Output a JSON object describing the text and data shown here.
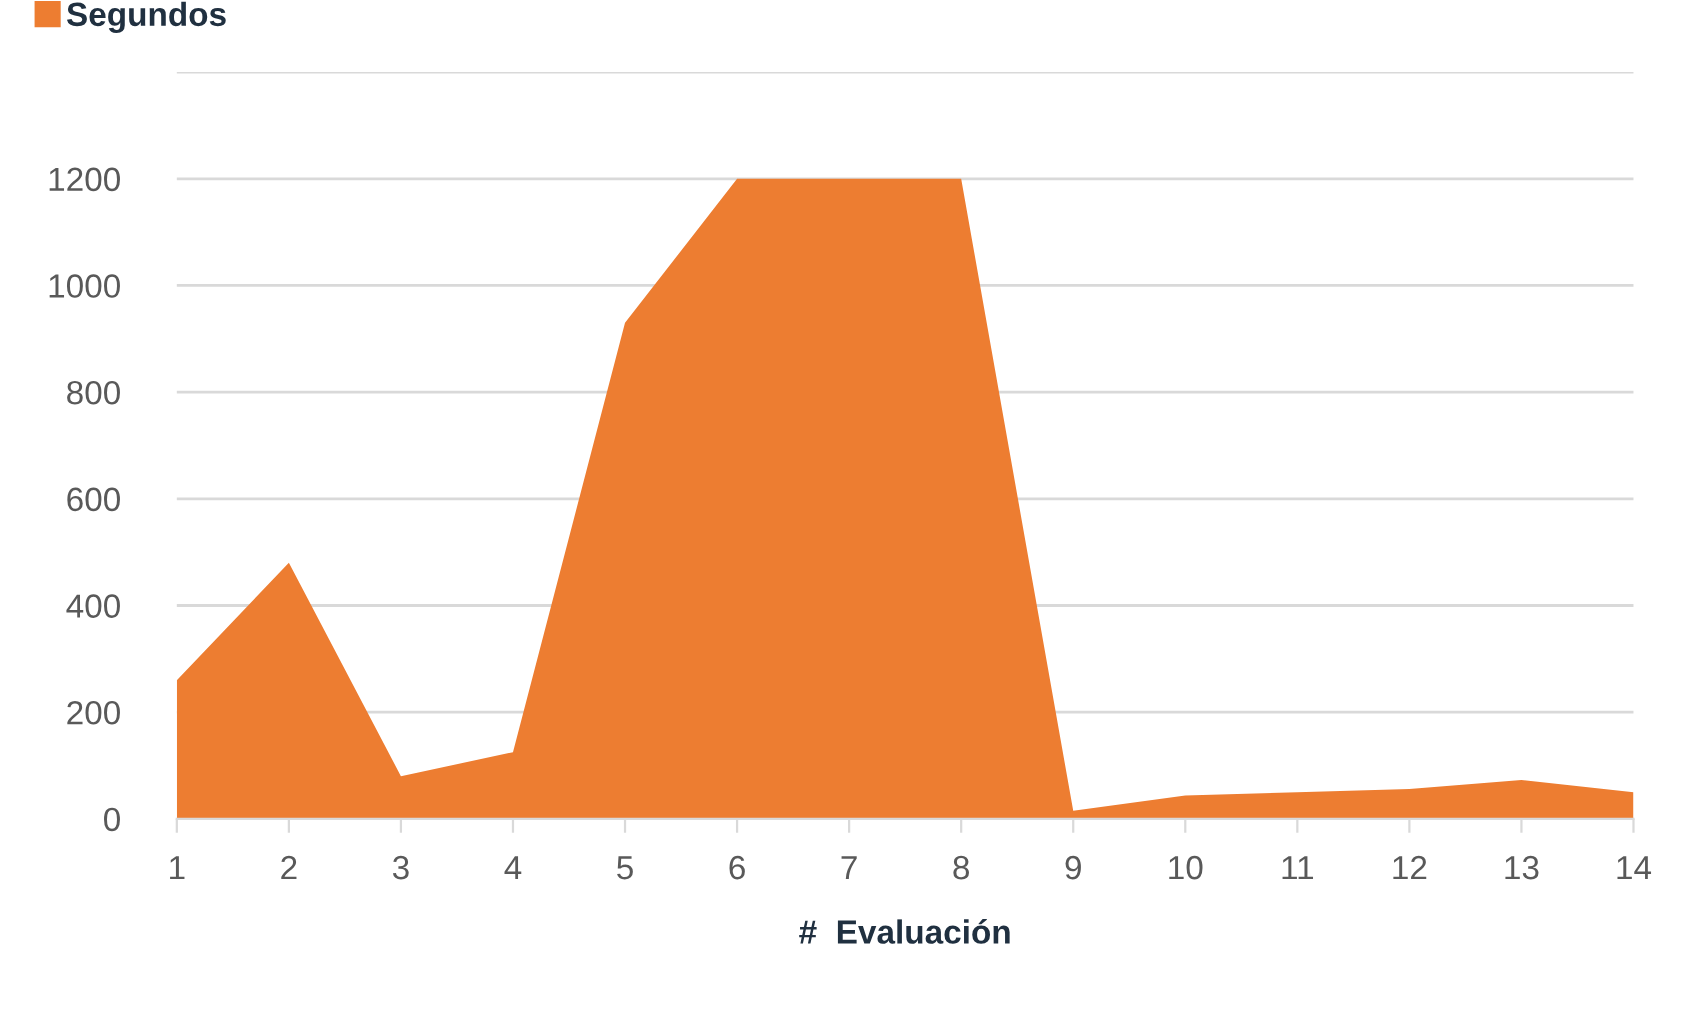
{
  "chart_data": {
    "type": "area",
    "xlabel": "#  Evaluación",
    "x": [
      1,
      2,
      3,
      4,
      5,
      6,
      7,
      8,
      9,
      10,
      11,
      12,
      13,
      14
    ],
    "series": [
      {
        "name": "Segundos",
        "color": "#ed7d31",
        "values": [
          260,
          480,
          80,
          125,
          930,
          1200,
          1200,
          1200,
          15,
          44,
          50,
          56,
          73,
          50
        ]
      }
    ],
    "xlim": [
      1,
      14
    ],
    "xticks": [
      1,
      2,
      3,
      4,
      5,
      6,
      7,
      8,
      9,
      10,
      11,
      12,
      13,
      14
    ],
    "ylim": [
      0,
      1400
    ],
    "yticks": [
      0,
      200,
      400,
      600,
      800,
      1000,
      1200,
      {
        "value": 1400,
        "label": null
      }
    ],
    "grid": "y",
    "legend": "top left"
  }
}
